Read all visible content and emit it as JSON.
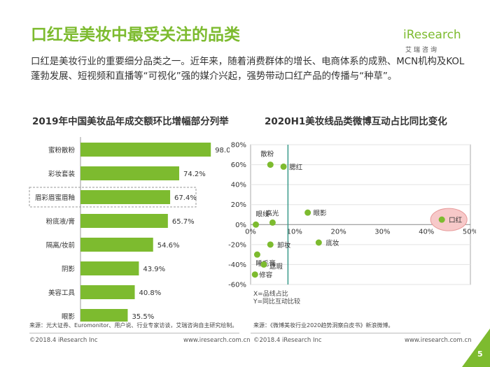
{
  "title": "口红是美妆中最受关注的品类",
  "logo": {
    "word": "iResearch",
    "sub": "艾瑞咨询"
  },
  "intro": "口红是美妆行业的重要细分品类之一。近年来，随着消费群体的增长、电商体系的成熟、MCN机构及KOL蓬勃发展、短视频和直播等“可视化”强的媒介兴起，强势带动口红产品的传播与“种草”。",
  "left_chart_title": "2019年中国美妆品年成交额环比增幅部分列举",
  "right_chart_title": "2020H1美妆线品类微博互动占比同比变化",
  "accent_color": "#7dbb2f",
  "highlight_color": "#f7c9c9",
  "chart_data": [
    {
      "type": "bar",
      "orientation": "horizontal",
      "categories": [
        "蜜粉散粉",
        "彩妆套装",
        "眉彩眉蜜眉釉",
        "粉底液/膏",
        "隔离/妆前",
        "阴影",
        "美容工具",
        "眼影"
      ],
      "values": [
        98.0,
        74.2,
        67.4,
        65.7,
        54.6,
        43.9,
        40.8,
        35.5
      ],
      "value_labels": [
        "98.0%",
        "74.2%",
        "67.4%",
        "65.7%",
        "54.6%",
        "43.9%",
        "40.8%",
        "35.5%"
      ],
      "highlighted_category": "眉彩眉蜜眉釉",
      "xlim": [
        0,
        100
      ],
      "color": "#7dbb2f"
    },
    {
      "type": "scatter",
      "x_ticks": [
        "0%",
        "10%",
        "20%",
        "30%",
        "40%",
        "50%"
      ],
      "y_ticks": [
        "80%",
        "60%",
        "40%",
        "20%",
        "0%",
        "-20%",
        "-40%",
        "-60%"
      ],
      "xlim": [
        0,
        50
      ],
      "ylim": [
        -60,
        80
      ],
      "reference_line_x": 8.5,
      "points": [
        {
          "label": "散粉",
          "x": 4.5,
          "y": 60
        },
        {
          "label": "腮红",
          "x": 7.5,
          "y": 58
        },
        {
          "label": "高光",
          "x": 5,
          "y": 2
        },
        {
          "label": "眼线",
          "x": 1.2,
          "y": 0
        },
        {
          "label": "眼影",
          "x": 13,
          "y": 12
        },
        {
          "label": "口红",
          "x": 43.5,
          "y": 5
        },
        {
          "label": "卸妆",
          "x": 4.5,
          "y": -20
        },
        {
          "label": "底妆",
          "x": 15.5,
          "y": -18
        },
        {
          "label": "睡毛膏",
          "x": 1.5,
          "y": -30
        },
        {
          "label": "遮瑕",
          "x": 3,
          "y": -40
        },
        {
          "label": "修容",
          "x": 1,
          "y": -50
        }
      ],
      "highlighted_point": "口红",
      "axis_note": [
        "X=品线占比",
        "Y=同比互动比较"
      ],
      "color": "#7dbb2f",
      "reference_line_color": "#3a9a8a"
    }
  ],
  "sources": {
    "left": "来源：光大证券、Euromonitor、用户说、行业专家访谈，艾瑞咨询自主研究绘制。",
    "right": "来源：《微博美妆行业2020趋势洞察白皮书》新浪微博。"
  },
  "footer": {
    "copyright": "©2018.4 iResearch Inc",
    "website": "www.iresearch.com.cn",
    "page_number": "5"
  }
}
